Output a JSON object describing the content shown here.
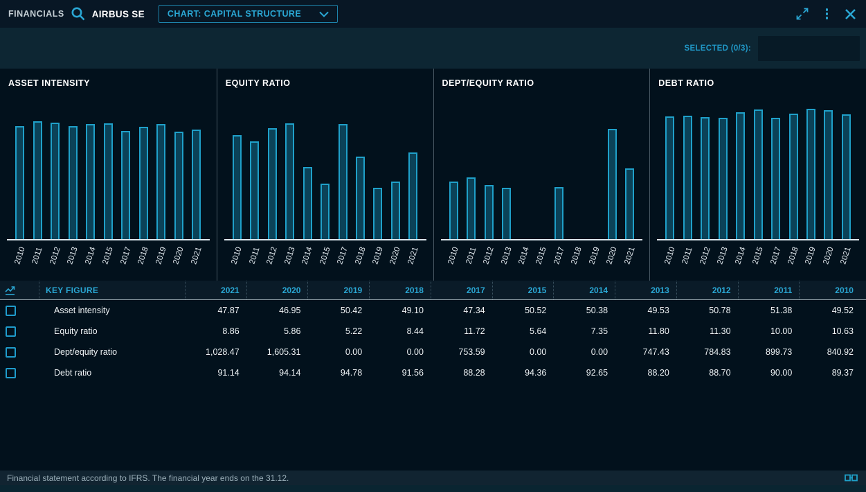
{
  "topbar": {
    "app_label": "FINANCIALS",
    "company": "AIRBUS SE",
    "chart_selector_label": "CHART: CAPITAL STRUCTURE"
  },
  "toolbar": {
    "selected_label": "SELECTED (0/3):"
  },
  "chart_data": [
    {
      "type": "bar",
      "title": "ASSET INTENSITY",
      "categories": [
        "2010",
        "2011",
        "2012",
        "2013",
        "2014",
        "2015",
        "2017",
        "2018",
        "2019",
        "2020",
        "2021"
      ],
      "values": [
        49.52,
        51.38,
        50.78,
        49.53,
        50.38,
        50.52,
        47.34,
        49.1,
        50.42,
        46.95,
        47.87
      ],
      "xlabel": "",
      "ylabel": "",
      "ylim": [
        0,
        60
      ],
      "grid": false,
      "legend": false
    },
    {
      "type": "bar",
      "title": "EQUITY RATIO",
      "categories": [
        "2010",
        "2011",
        "2012",
        "2013",
        "2014",
        "2015",
        "2017",
        "2018",
        "2019",
        "2020",
        "2021"
      ],
      "values": [
        10.63,
        10.0,
        11.3,
        11.8,
        7.35,
        5.64,
        11.72,
        8.44,
        5.22,
        5.86,
        8.86
      ],
      "xlabel": "",
      "ylabel": "",
      "ylim": [
        0,
        14
      ],
      "grid": false,
      "legend": false
    },
    {
      "type": "bar",
      "title": "DEPT/EQUITY RATIO",
      "categories": [
        "2010",
        "2011",
        "2012",
        "2013",
        "2014",
        "2015",
        "2017",
        "2018",
        "2019",
        "2020",
        "2021"
      ],
      "values": [
        840.92,
        899.73,
        784.83,
        747.43,
        0.0,
        0.0,
        753.59,
        0.0,
        0.0,
        1605.31,
        1028.47
      ],
      "xlabel": "",
      "ylabel": "",
      "ylim": [
        0,
        2000
      ],
      "grid": false,
      "legend": false
    },
    {
      "type": "bar",
      "title": "DEBT RATIO",
      "categories": [
        "2010",
        "2011",
        "2012",
        "2013",
        "2014",
        "2015",
        "2017",
        "2018",
        "2019",
        "2020",
        "2021"
      ],
      "values": [
        89.37,
        90.0,
        88.7,
        88.2,
        92.65,
        94.36,
        88.28,
        91.56,
        94.78,
        94.14,
        91.14
      ],
      "xlabel": "",
      "ylabel": "",
      "ylim": [
        0,
        100
      ],
      "grid": false,
      "legend": false
    }
  ],
  "table": {
    "key_figure_header": "KEY FIGURE",
    "years": [
      "2021",
      "2020",
      "2019",
      "2018",
      "2017",
      "2015",
      "2014",
      "2013",
      "2012",
      "2011",
      "2010"
    ],
    "rows": [
      {
        "label": "Asset intensity",
        "values": [
          "47.87",
          "46.95",
          "50.42",
          "49.10",
          "47.34",
          "50.52",
          "50.38",
          "49.53",
          "50.78",
          "51.38",
          "49.52"
        ]
      },
      {
        "label": "Equity ratio",
        "values": [
          "8.86",
          "5.86",
          "5.22",
          "8.44",
          "11.72",
          "5.64",
          "7.35",
          "11.80",
          "11.30",
          "10.00",
          "10.63"
        ]
      },
      {
        "label": "Dept/equity ratio",
        "values": [
          "1,028.47",
          "1,605.31",
          "0.00",
          "0.00",
          "753.59",
          "0.00",
          "0.00",
          "747.43",
          "784.83",
          "899.73",
          "840.92"
        ]
      },
      {
        "label": "Debt ratio",
        "values": [
          "91.14",
          "94.14",
          "94.78",
          "91.56",
          "88.28",
          "94.36",
          "92.65",
          "88.20",
          "88.70",
          "90.00",
          "89.37"
        ]
      }
    ]
  },
  "footer": {
    "note": "Financial statement according to IFRS. The financial year ends on the 31.12."
  },
  "colors": {
    "accent": "#2aa7d4",
    "bar_fill": "#0b4258",
    "bar_border": "#1fa0c9",
    "topbar_bg": "#081725",
    "toolbar_bg": "#0d2633",
    "main_bg": "#02111c",
    "footer_bg": "#112431"
  }
}
